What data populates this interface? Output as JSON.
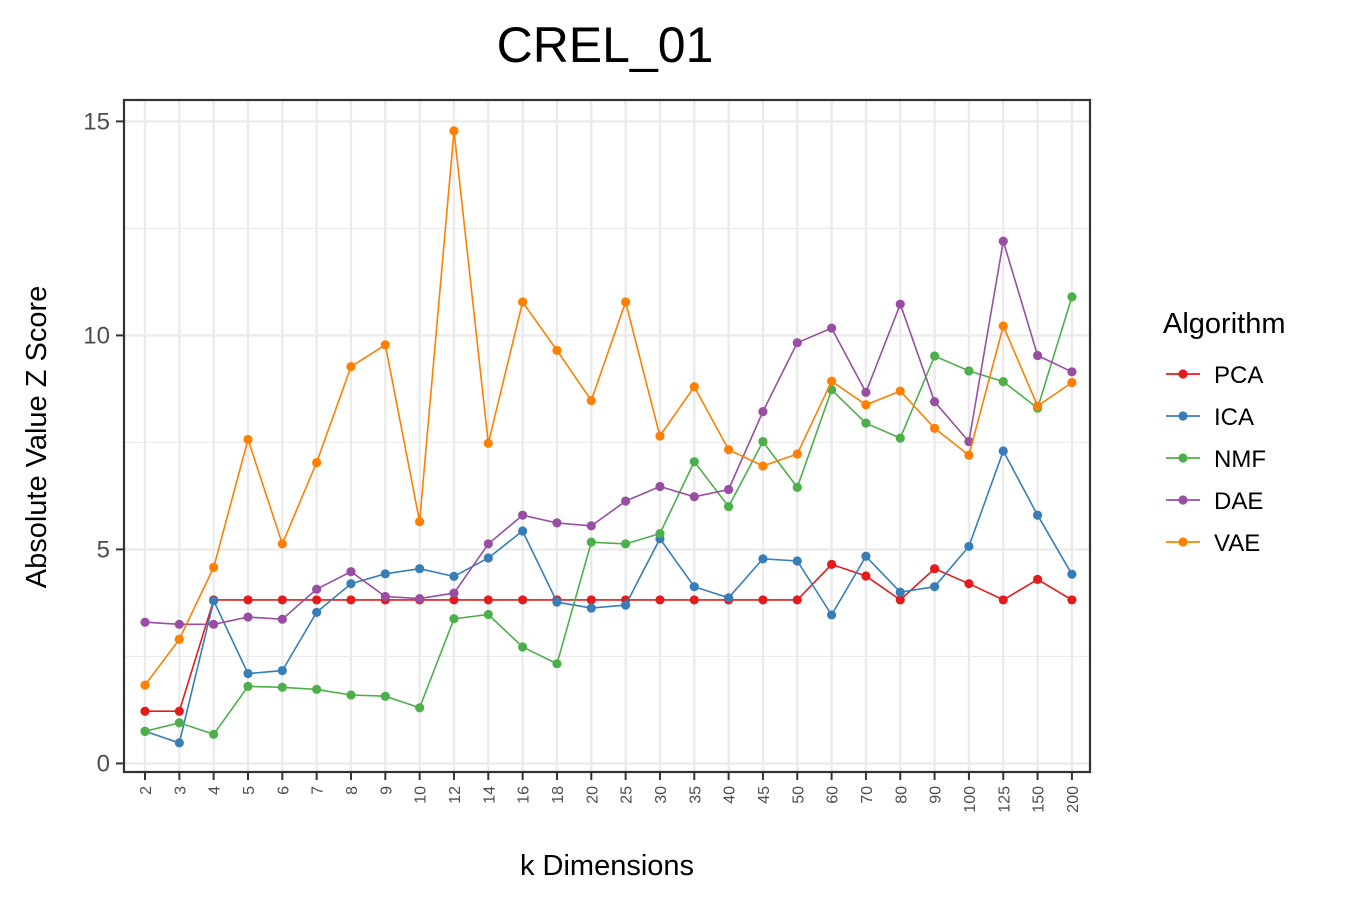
{
  "chart_data": {
    "type": "line",
    "title": "CREL_01",
    "xlabel": "k Dimensions",
    "ylabel": "Absolute Value Z Score",
    "categories": [
      "2",
      "3",
      "4",
      "5",
      "6",
      "7",
      "8",
      "9",
      "10",
      "12",
      "14",
      "16",
      "18",
      "20",
      "25",
      "30",
      "35",
      "40",
      "45",
      "50",
      "60",
      "70",
      "80",
      "90",
      "100",
      "125",
      "150",
      "200"
    ],
    "ylim": [
      -0.2,
      15.5
    ],
    "yticks": [
      0,
      5,
      10,
      15
    ],
    "grid": true,
    "legend": {
      "title": "Algorithm",
      "position": "right"
    },
    "series": [
      {
        "name": "PCA",
        "color": "#E41A1C",
        "values": [
          1.22,
          1.22,
          3.82,
          3.82,
          3.82,
          3.82,
          3.82,
          3.82,
          3.82,
          3.82,
          3.82,
          3.82,
          3.82,
          3.82,
          3.82,
          3.82,
          3.82,
          3.82,
          3.82,
          3.82,
          4.65,
          4.38,
          3.82,
          4.55,
          4.2,
          3.82,
          4.3,
          3.82
        ]
      },
      {
        "name": "ICA",
        "color": "#377EB8",
        "values": [
          0.75,
          0.48,
          3.8,
          2.1,
          2.17,
          3.53,
          4.2,
          4.43,
          4.55,
          4.37,
          4.8,
          5.43,
          3.77,
          3.63,
          3.7,
          5.25,
          4.13,
          3.87,
          4.78,
          4.73,
          3.47,
          4.84,
          4.0,
          4.13,
          5.07,
          7.3,
          5.8,
          4.42
        ]
      },
      {
        "name": "NMF",
        "color": "#4DAF4A",
        "values": [
          0.75,
          0.95,
          0.68,
          1.8,
          1.78,
          1.73,
          1.6,
          1.57,
          1.3,
          3.38,
          3.48,
          2.72,
          2.33,
          5.17,
          5.13,
          5.37,
          7.05,
          6.0,
          7.52,
          6.45,
          8.73,
          7.95,
          7.6,
          9.52,
          9.17,
          8.92,
          8.3,
          10.9
        ]
      },
      {
        "name": "DAE",
        "color": "#984EA3",
        "values": [
          3.3,
          3.25,
          3.25,
          3.42,
          3.37,
          4.07,
          4.48,
          3.9,
          3.85,
          3.98,
          5.13,
          5.8,
          5.62,
          5.55,
          6.13,
          6.47,
          6.23,
          6.4,
          8.22,
          9.83,
          10.17,
          8.67,
          10.73,
          8.45,
          7.52,
          12.2,
          9.53,
          9.15
        ]
      },
      {
        "name": "VAE",
        "color": "#FF7F00",
        "values": [
          1.83,
          2.9,
          4.58,
          7.57,
          5.13,
          7.03,
          9.27,
          9.78,
          5.65,
          14.78,
          7.48,
          10.78,
          9.65,
          8.48,
          10.78,
          7.65,
          8.8,
          7.33,
          6.95,
          7.23,
          8.93,
          8.38,
          8.7,
          7.83,
          7.2,
          10.22,
          8.35,
          8.9
        ]
      }
    ]
  }
}
